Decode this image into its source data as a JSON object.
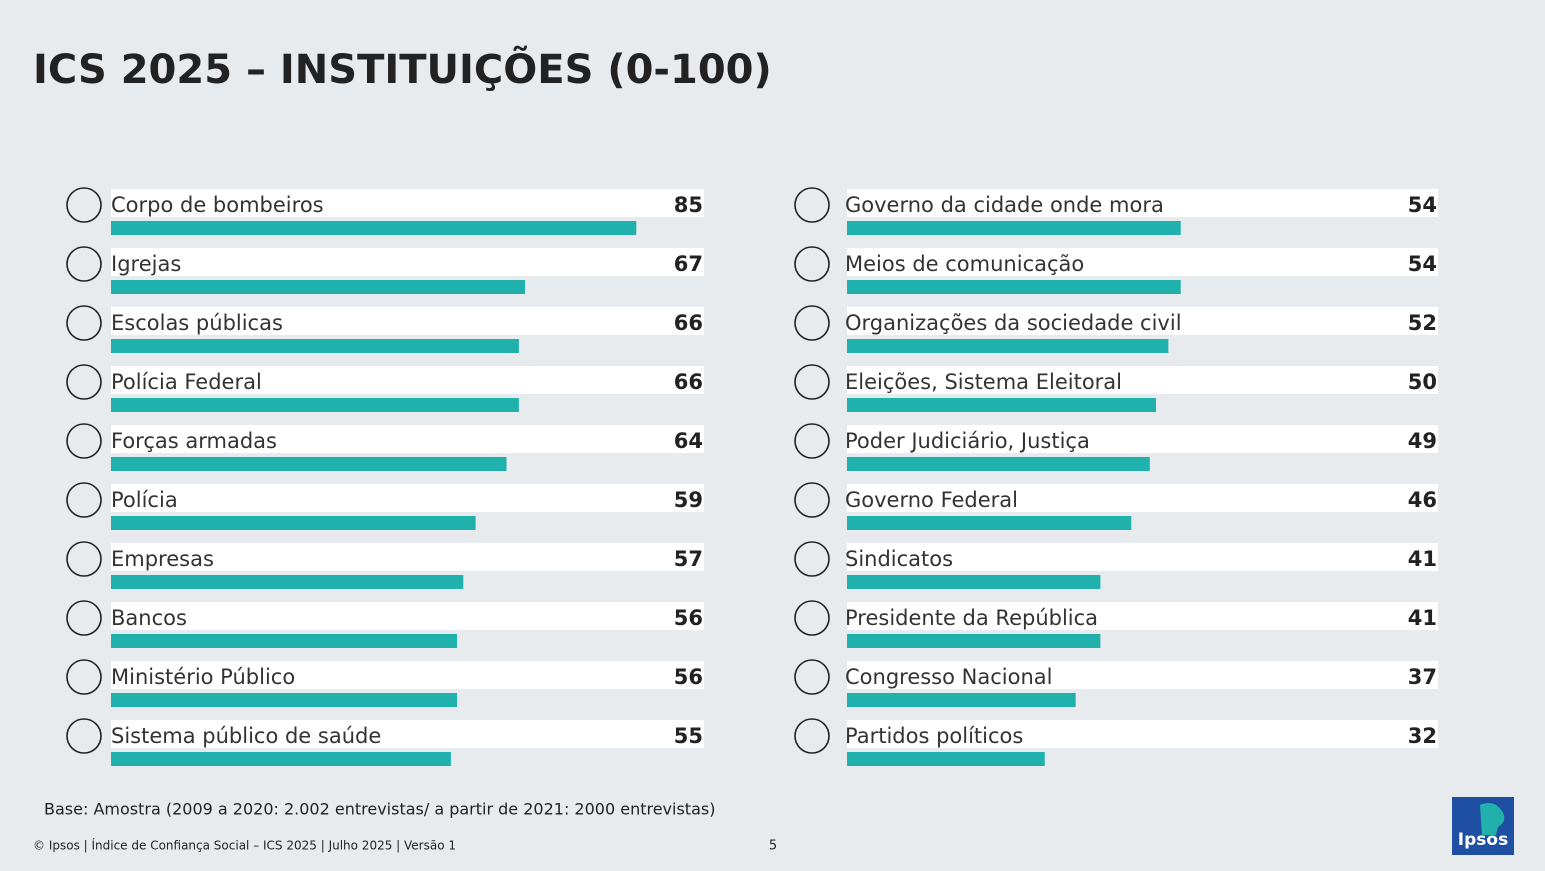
{
  "title": "ICS 2025 – INSTITUIÇÕES (0-100)",
  "chart_data": [
    {
      "type": "bar",
      "orientation": "horizontal",
      "color": "#21b1ad",
      "categories": [
        "Corpo de bombeiros",
        "Igrejas",
        "Escolas públicas",
        "Polícia Federal",
        "Forças armadas",
        "Polícia",
        "Empresas",
        "Bancos",
        "Ministério Público",
        "Sistema público de saúde"
      ],
      "values": [
        85,
        67,
        66,
        66,
        64,
        59,
        57,
        56,
        56,
        55
      ]
    },
    {
      "type": "bar",
      "orientation": "horizontal",
      "color": "#21b1ad",
      "categories": [
        "Governo da cidade onde mora",
        "Meios de comunicação",
        "Organizações da sociedade civil",
        "Eleições, Sistema Eleitoral",
        "Poder Judiciário, Justiça",
        "Governo Federal",
        "Sindicatos",
        "Presidente da República",
        "Congresso Nacional",
        "Partidos políticos"
      ],
      "values": [
        54,
        54,
        52,
        50,
        49,
        46,
        41,
        41,
        37,
        32
      ]
    }
  ],
  "footer": {
    "base": "Base: Amostra  (2009 a 2020: 2.002 entrevistas/ a partir de 2021: 2000 entrevistas)",
    "copyright": "© Ipsos | Índice de Confiança Social – ICS 2025 | Julho 2025 | Versão 1",
    "page_number": 5,
    "logo": "Ipsos"
  }
}
